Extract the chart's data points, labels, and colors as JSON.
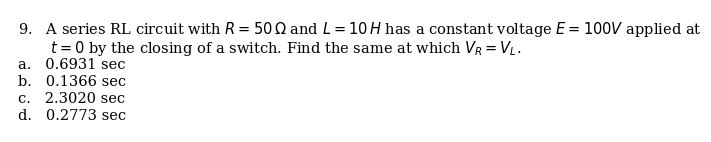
{
  "line1": "9.   A series RL circuit with $R = 50\\,\\Omega$ and $L = 10\\,H$ has a constant voltage $E = 100V$ applied at",
  "line2": "       $t = 0$ by the closing of a switch. Find the same at which $V_R = V_L$.",
  "opt_a": "a.   0.6931 sec",
  "opt_b": "b.   0.1366 sec",
  "opt_c": "c.   2.3020 sec",
  "opt_d": "d.   0.2773 sec",
  "font_size": 10.5,
  "text_color": "#000000",
  "background_color": "#ffffff",
  "font_family": "serif"
}
